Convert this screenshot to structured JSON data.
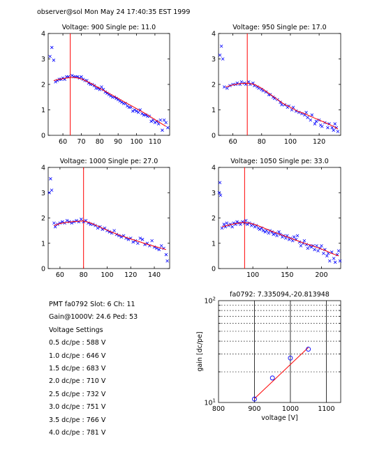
{
  "header": "observer@sol  Mon May 24 17:40:35 EST 1999",
  "info": {
    "pmt": "PMT fa0792 Slot: 6 Ch: 11",
    "gain": "Gain@1000V: 24.6 Ped: 53",
    "settings_title": "Voltage Settings",
    "settings": [
      "0.5 dc/pe : 588 V",
      "1.0 dc/pe : 646 V",
      "1.5 dc/pe : 683 V",
      "2.0 dc/pe : 710 V",
      "2.5 dc/pe : 732 V",
      "3.0 dc/pe : 751 V",
      "3.5 dc/pe : 766 V",
      "4.0 dc/pe : 781 V"
    ]
  },
  "colors": {
    "data": "#0000ff",
    "fit": "#ff0000",
    "axis": "#000000"
  },
  "chart_data": [
    {
      "type": "scatter",
      "title": "Voltage: 900 Single pe: 11.0",
      "xlim": [
        52,
        118
      ],
      "ylim": [
        0,
        4
      ],
      "xticks": [
        60,
        70,
        80,
        90,
        100,
        110
      ],
      "yticks": [
        0,
        1,
        2,
        3,
        4
      ],
      "vline": 64,
      "fit": [
        [
          55,
          2.15
        ],
        [
          58,
          2.2
        ],
        [
          62,
          2.25
        ],
        [
          66,
          2.28
        ],
        [
          70,
          2.22
        ],
        [
          75,
          2.05
        ],
        [
          80,
          1.85
        ],
        [
          85,
          1.65
        ],
        [
          90,
          1.45
        ],
        [
          95,
          1.25
        ],
        [
          100,
          1.05
        ],
        [
          105,
          0.85
        ],
        [
          110,
          0.62
        ],
        [
          116,
          0.35
        ]
      ],
      "points": [
        [
          53,
          3.1
        ],
        [
          54,
          3.45
        ],
        [
          55,
          2.95
        ],
        [
          56,
          2.1
        ],
        [
          57,
          2.15
        ],
        [
          58,
          2.2
        ],
        [
          59,
          2.2
        ],
        [
          60,
          2.25
        ],
        [
          61,
          2.2
        ],
        [
          62,
          2.3
        ],
        [
          63,
          2.3
        ],
        [
          65,
          2.35
        ],
        [
          66,
          2.3
        ],
        [
          67,
          2.3
        ],
        [
          68,
          2.3
        ],
        [
          69,
          2.25
        ],
        [
          70,
          2.3
        ],
        [
          71,
          2.2
        ],
        [
          72,
          2.15
        ],
        [
          73,
          2.15
        ],
        [
          74,
          2.05
        ],
        [
          75,
          2.0
        ],
        [
          76,
          2.0
        ],
        [
          77,
          1.95
        ],
        [
          78,
          1.85
        ],
        [
          79,
          1.85
        ],
        [
          80,
          1.8
        ],
        [
          81,
          1.9
        ],
        [
          82,
          1.8
        ],
        [
          83,
          1.7
        ],
        [
          84,
          1.65
        ],
        [
          85,
          1.6
        ],
        [
          86,
          1.55
        ],
        [
          87,
          1.5
        ],
        [
          88,
          1.5
        ],
        [
          89,
          1.45
        ],
        [
          90,
          1.4
        ],
        [
          91,
          1.35
        ],
        [
          92,
          1.3
        ],
        [
          93,
          1.25
        ],
        [
          94,
          1.25
        ],
        [
          95,
          1.15
        ],
        [
          96,
          1.1
        ],
        [
          97,
          1.1
        ],
        [
          98,
          0.95
        ],
        [
          99,
          1.0
        ],
        [
          100,
          0.95
        ],
        [
          101,
          0.9
        ],
        [
          102,
          1.0
        ],
        [
          103,
          0.85
        ],
        [
          104,
          0.8
        ],
        [
          105,
          0.8
        ],
        [
          106,
          0.75
        ],
        [
          107,
          0.75
        ],
        [
          108,
          0.55
        ],
        [
          109,
          0.6
        ],
        [
          110,
          0.5
        ],
        [
          111,
          0.55
        ],
        [
          112,
          0.45
        ],
        [
          113,
          0.6
        ],
        [
          114,
          0.2
        ],
        [
          115,
          0.6
        ],
        [
          116,
          0.5
        ],
        [
          117,
          0.3
        ]
      ]
    },
    {
      "type": "scatter",
      "title": "Voltage: 950 Single pe: 17.0",
      "xlim": [
        50,
        135
      ],
      "ylim": [
        0,
        4
      ],
      "xticks": [
        60,
        80,
        100,
        120
      ],
      "yticks": [
        0,
        1,
        2,
        3,
        4
      ],
      "vline": 70,
      "fit": [
        [
          55,
          1.9
        ],
        [
          60,
          1.98
        ],
        [
          65,
          2.03
        ],
        [
          70,
          2.05
        ],
        [
          75,
          2.0
        ],
        [
          80,
          1.85
        ],
        [
          85,
          1.65
        ],
        [
          90,
          1.45
        ],
        [
          95,
          1.25
        ],
        [
          100,
          1.1
        ],
        [
          105,
          0.95
        ],
        [
          110,
          0.85
        ],
        [
          115,
          0.72
        ],
        [
          120,
          0.6
        ],
        [
          125,
          0.48
        ],
        [
          130,
          0.35
        ],
        [
          133,
          0.25
        ]
      ],
      "points": [
        [
          51,
          3.15
        ],
        [
          52,
          3.5
        ],
        [
          53,
          3.0
        ],
        [
          54,
          1.9
        ],
        [
          56,
          1.85
        ],
        [
          58,
          1.95
        ],
        [
          60,
          2.0
        ],
        [
          62,
          2.0
        ],
        [
          63,
          2.05
        ],
        [
          65,
          2.0
        ],
        [
          66,
          2.1
        ],
        [
          68,
          2.05
        ],
        [
          69,
          2.0
        ],
        [
          71,
          2.1
        ],
        [
          72,
          2.0
        ],
        [
          74,
          2.05
        ],
        [
          75,
          1.95
        ],
        [
          77,
          1.9
        ],
        [
          78,
          1.85
        ],
        [
          80,
          1.8
        ],
        [
          81,
          1.75
        ],
        [
          83,
          1.7
        ],
        [
          85,
          1.6
        ],
        [
          86,
          1.6
        ],
        [
          88,
          1.5
        ],
        [
          89,
          1.45
        ],
        [
          91,
          1.4
        ],
        [
          93,
          1.3
        ],
        [
          94,
          1.2
        ],
        [
          96,
          1.2
        ],
        [
          98,
          1.1
        ],
        [
          99,
          1.15
        ],
        [
          101,
          1.0
        ],
        [
          102,
          1.1
        ],
        [
          104,
          0.95
        ],
        [
          106,
          0.9
        ],
        [
          108,
          0.85
        ],
        [
          110,
          0.8
        ],
        [
          111,
          0.9
        ],
        [
          112,
          0.7
        ],
        [
          114,
          0.6
        ],
        [
          115,
          0.8
        ],
        [
          117,
          0.45
        ],
        [
          118,
          0.55
        ],
        [
          120,
          0.6
        ],
        [
          121,
          0.4
        ],
        [
          122,
          0.35
        ],
        [
          124,
          0.5
        ],
        [
          126,
          0.3
        ],
        [
          127,
          0.45
        ],
        [
          129,
          0.3
        ],
        [
          130,
          0.2
        ],
        [
          131,
          0.45
        ],
        [
          132,
          0.3
        ],
        [
          133,
          0.15
        ]
      ]
    },
    {
      "type": "scatter",
      "title": "Voltage: 1000 Single pe: 27.0",
      "xlim": [
        50,
        153
      ],
      "ylim": [
        0,
        4
      ],
      "xticks": [
        60,
        80,
        100,
        120,
        140
      ],
      "yticks": [
        0,
        1,
        2,
        3,
        4
      ],
      "vline": 80,
      "fit": [
        [
          55,
          1.7
        ],
        [
          60,
          1.78
        ],
        [
          65,
          1.82
        ],
        [
          70,
          1.85
        ],
        [
          75,
          1.87
        ],
        [
          80,
          1.88
        ],
        [
          85,
          1.82
        ],
        [
          90,
          1.72
        ],
        [
          95,
          1.62
        ],
        [
          100,
          1.52
        ],
        [
          105,
          1.42
        ],
        [
          110,
          1.33
        ],
        [
          115,
          1.25
        ],
        [
          120,
          1.17
        ],
        [
          125,
          1.1
        ],
        [
          130,
          1.02
        ],
        [
          135,
          0.95
        ],
        [
          140,
          0.88
        ],
        [
          145,
          0.82
        ],
        [
          150,
          0.75
        ]
      ],
      "points": [
        [
          51,
          3.0
        ],
        [
          52,
          3.55
        ],
        [
          53,
          3.1
        ],
        [
          55,
          1.8
        ],
        [
          56,
          1.65
        ],
        [
          58,
          1.75
        ],
        [
          60,
          1.8
        ],
        [
          62,
          1.85
        ],
        [
          64,
          1.8
        ],
        [
          66,
          1.9
        ],
        [
          68,
          1.85
        ],
        [
          70,
          1.8
        ],
        [
          72,
          1.85
        ],
        [
          74,
          1.9
        ],
        [
          76,
          1.85
        ],
        [
          78,
          1.95
        ],
        [
          80,
          1.85
        ],
        [
          82,
          1.9
        ],
        [
          84,
          1.8
        ],
        [
          86,
          1.75
        ],
        [
          88,
          1.75
        ],
        [
          90,
          1.7
        ],
        [
          92,
          1.6
        ],
        [
          94,
          1.65
        ],
        [
          96,
          1.55
        ],
        [
          98,
          1.6
        ],
        [
          100,
          1.5
        ],
        [
          102,
          1.45
        ],
        [
          104,
          1.4
        ],
        [
          106,
          1.5
        ],
        [
          108,
          1.35
        ],
        [
          110,
          1.3
        ],
        [
          112,
          1.25
        ],
        [
          114,
          1.3
        ],
        [
          116,
          1.2
        ],
        [
          118,
          1.15
        ],
        [
          120,
          1.2
        ],
        [
          122,
          1.05
        ],
        [
          124,
          1.1
        ],
        [
          126,
          1.0
        ],
        [
          128,
          1.2
        ],
        [
          130,
          1.15
        ],
        [
          132,
          0.95
        ],
        [
          134,
          1.0
        ],
        [
          136,
          0.9
        ],
        [
          138,
          1.1
        ],
        [
          140,
          0.85
        ],
        [
          142,
          0.8
        ],
        [
          144,
          0.75
        ],
        [
          146,
          0.9
        ],
        [
          148,
          0.8
        ],
        [
          150,
          0.55
        ],
        [
          151,
          0.3
        ]
      ]
    },
    {
      "type": "scatter",
      "title": "Voltage: 1050 Single pe: 33.0",
      "xlim": [
        50,
        228
      ],
      "ylim": [
        0,
        4
      ],
      "xticks": [
        100,
        150,
        200
      ],
      "yticks": [
        0,
        1,
        2,
        3,
        4
      ],
      "vline": 88,
      "fit": [
        [
          55,
          1.65
        ],
        [
          65,
          1.72
        ],
        [
          75,
          1.78
        ],
        [
          85,
          1.82
        ],
        [
          95,
          1.8
        ],
        [
          105,
          1.72
        ],
        [
          115,
          1.62
        ],
        [
          125,
          1.5
        ],
        [
          135,
          1.4
        ],
        [
          145,
          1.3
        ],
        [
          155,
          1.2
        ],
        [
          165,
          1.1
        ],
        [
          175,
          1.0
        ],
        [
          185,
          0.92
        ],
        [
          195,
          0.82
        ],
        [
          205,
          0.72
        ],
        [
          215,
          0.6
        ],
        [
          225,
          0.5
        ]
      ],
      "points": [
        [
          51,
          3.0
        ],
        [
          52,
          3.4
        ],
        [
          53,
          2.9
        ],
        [
          55,
          1.6
        ],
        [
          58,
          1.75
        ],
        [
          60,
          1.65
        ],
        [
          62,
          1.8
        ],
        [
          65,
          1.7
        ],
        [
          67,
          1.75
        ],
        [
          70,
          1.65
        ],
        [
          72,
          1.8
        ],
        [
          75,
          1.75
        ],
        [
          77,
          1.85
        ],
        [
          80,
          1.8
        ],
        [
          82,
          1.75
        ],
        [
          85,
          1.85
        ],
        [
          88,
          1.8
        ],
        [
          90,
          1.9
        ],
        [
          92,
          1.75
        ],
        [
          95,
          1.8
        ],
        [
          98,
          1.7
        ],
        [
          100,
          1.75
        ],
        [
          103,
          1.65
        ],
        [
          105,
          1.7
        ],
        [
          108,
          1.6
        ],
        [
          110,
          1.55
        ],
        [
          113,
          1.6
        ],
        [
          115,
          1.5
        ],
        [
          118,
          1.45
        ],
        [
          120,
          1.5
        ],
        [
          123,
          1.4
        ],
        [
          125,
          1.5
        ],
        [
          128,
          1.45
        ],
        [
          130,
          1.35
        ],
        [
          133,
          1.4
        ],
        [
          135,
          1.3
        ],
        [
          138,
          1.45
        ],
        [
          140,
          1.35
        ],
        [
          143,
          1.25
        ],
        [
          145,
          1.3
        ],
        [
          148,
          1.2
        ],
        [
          150,
          1.3
        ],
        [
          153,
          1.15
        ],
        [
          155,
          1.2
        ],
        [
          158,
          1.1
        ],
        [
          160,
          1.25
        ],
        [
          163,
          1.15
        ],
        [
          165,
          1.3
        ],
        [
          168,
          1.05
        ],
        [
          170,
          0.9
        ],
        [
          173,
          1.0
        ],
        [
          175,
          1.1
        ],
        [
          178,
          0.95
        ],
        [
          180,
          0.8
        ],
        [
          183,
          0.9
        ],
        [
          185,
          0.85
        ],
        [
          188,
          0.9
        ],
        [
          190,
          0.75
        ],
        [
          193,
          0.9
        ],
        [
          195,
          0.7
        ],
        [
          198,
          0.8
        ],
        [
          200,
          0.9
        ],
        [
          203,
          0.6
        ],
        [
          205,
          0.75
        ],
        [
          208,
          0.5
        ],
        [
          210,
          0.6
        ],
        [
          212,
          0.3
        ],
        [
          215,
          0.65
        ],
        [
          218,
          0.4
        ],
        [
          220,
          0.25
        ],
        [
          223,
          0.55
        ],
        [
          225,
          0.7
        ],
        [
          227,
          0.3
        ]
      ]
    },
    {
      "type": "scatter",
      "title": "fa0792: 7.335094,-20.813948",
      "xlabel": "voltage [V]",
      "ylabel": "gain [dc/pe]",
      "yscale": "log",
      "xlim": [
        800,
        1140
      ],
      "ylim": [
        10,
        100
      ],
      "xticks": [
        800,
        900,
        1000,
        1100
      ],
      "ytick_labels": [
        "10",
        "100"
      ],
      "grid": true,
      "points": [
        [
          900,
          10.8
        ],
        [
          950,
          17.4
        ],
        [
          1000,
          27.3
        ],
        [
          1050,
          33.4
        ]
      ],
      "fit": [
        [
          900,
          10.9
        ],
        [
          1050,
          34.7
        ]
      ]
    }
  ]
}
